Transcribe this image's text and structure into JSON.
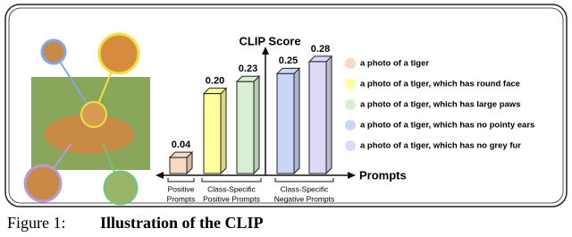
{
  "chart_data": {
    "type": "bar3d",
    "y_label": "CLIP Score",
    "x_label": "Prompts",
    "categories": [
      "a photo of a tiger",
      "a photo of a tiger, which has round face",
      "a photo of a tiger, which has large paws",
      "a photo of a tiger, which has no pointy ears",
      "a photo of a tiger, which has no grey fur"
    ],
    "values": [
      0.04,
      0.2,
      0.23,
      0.25,
      0.28
    ],
    "value_labels": [
      "0.04",
      "0.20",
      "0.23",
      "0.25",
      "0.28"
    ],
    "colors": [
      "#f8d9c2",
      "#ffff9e",
      "#d8efd3",
      "#c9d6f7",
      "#ddd8f6"
    ],
    "ylim": [
      0,
      0.3
    ],
    "groups": [
      {
        "lines": [
          "Positive",
          "Prompts"
        ],
        "members": [
          0
        ]
      },
      {
        "lines": [
          "Class-Specific",
          "Positive Prompts"
        ],
        "members": [
          1,
          2
        ]
      },
      {
        "lines": [
          "Class-Specific",
          "Negative Prompts"
        ],
        "members": [
          3,
          4
        ]
      }
    ],
    "caption": {
      "label": "Figure 1:",
      "text": "Illustration of the CLIP"
    }
  }
}
